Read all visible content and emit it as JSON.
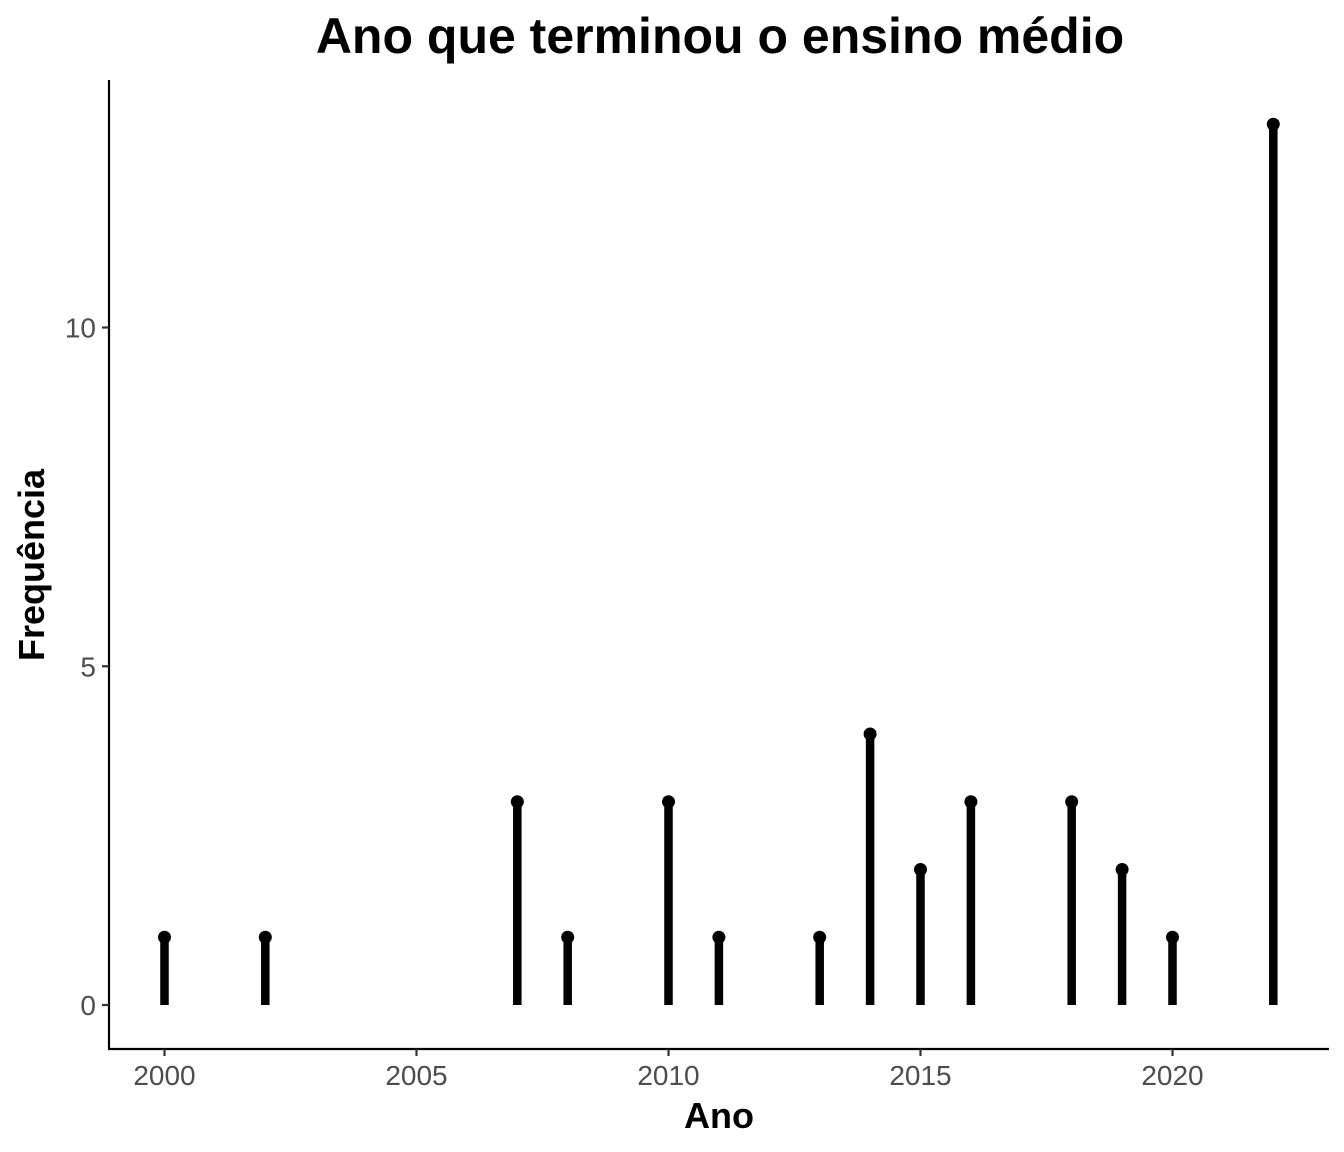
{
  "chart_data": {
    "type": "lollipop",
    "title": "Ano que terminou o ensino médio",
    "xlabel": "Ano",
    "ylabel": "Frequência",
    "x": [
      2000,
      2002,
      2007,
      2008,
      2010,
      2011,
      2013,
      2014,
      2015,
      2016,
      2018,
      2019,
      2020,
      2022
    ],
    "values": [
      1,
      1,
      3,
      1,
      3,
      1,
      1,
      4,
      2,
      3,
      3,
      2,
      1,
      13
    ],
    "xlim": [
      1999,
      2023
    ],
    "ylim": [
      0,
      13
    ],
    "xticks": [
      2000,
      2005,
      2010,
      2015,
      2020
    ],
    "yticks": [
      0,
      5,
      10
    ],
    "xtick_labels": [
      "2000",
      "2005",
      "2010",
      "2015",
      "2020"
    ],
    "ytick_labels": [
      "0",
      "5",
      "10"
    ],
    "grid": false,
    "color": "#000000"
  }
}
